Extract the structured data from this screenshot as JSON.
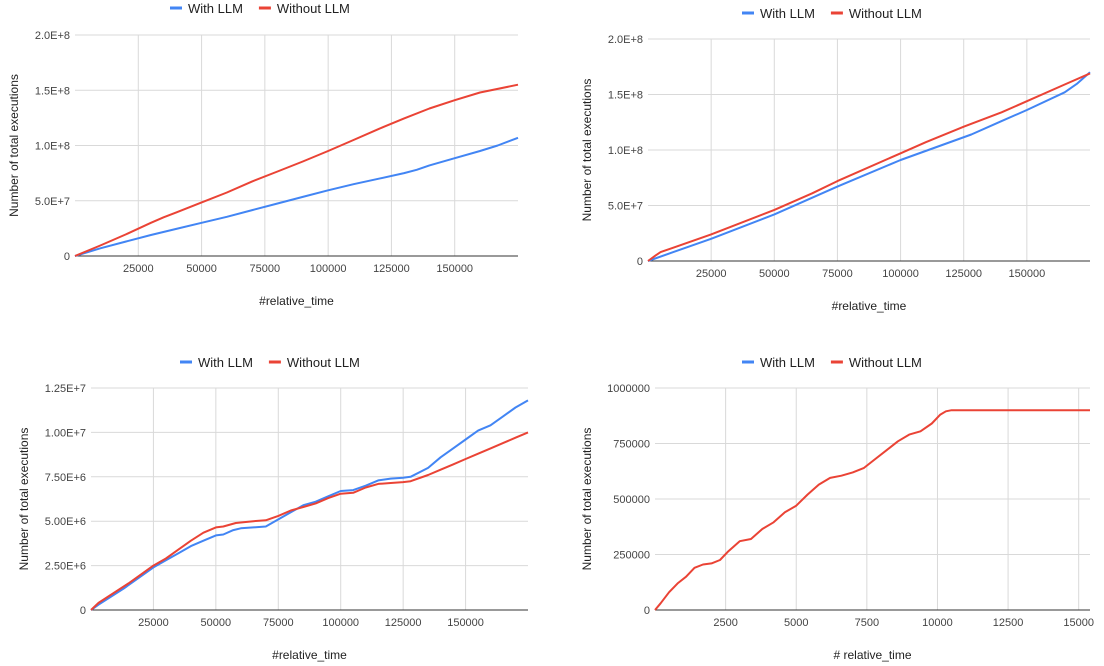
{
  "colors": {
    "with_llm": "#4285f4",
    "without_llm": "#ea4335",
    "grid": "#d9d9d9"
  },
  "chart_data": [
    {
      "type": "line",
      "legend": [
        "With LLM",
        "Without LLM"
      ],
      "xlabel": "#relative_time",
      "ylabel": "Number of total executions",
      "xlim": [
        0,
        175000
      ],
      "ylim": [
        0,
        200000000
      ],
      "xticks": [
        25000,
        50000,
        75000,
        100000,
        125000,
        150000
      ],
      "xtick_labels": [
        "25000",
        "50000",
        "75000",
        "100000",
        "125000",
        "150000"
      ],
      "yticks": [
        0,
        50000000,
        100000000,
        150000000,
        200000000
      ],
      "ytick_labels": [
        "0",
        "5.0E+7",
        "1.0E+8",
        "1.5E+8",
        "2.0E+8"
      ],
      "series": [
        {
          "name": "With LLM",
          "x": [
            0,
            10000,
            20000,
            30000,
            40000,
            50000,
            60000,
            70000,
            80000,
            90000,
            100000,
            110000,
            120000,
            130000,
            135000,
            140000,
            150000,
            160000,
            167000,
            175000
          ],
          "y": [
            0,
            7000000,
            13000000,
            19000000,
            24500000,
            30000000,
            35500000,
            41500000,
            47500000,
            53500000,
            59500000,
            65000000,
            70000000,
            75000000,
            78000000,
            82000000,
            88500000,
            95000000,
            100000000,
            107000000
          ]
        },
        {
          "name": "Without LLM",
          "x": [
            0,
            10000,
            20000,
            30000,
            35000,
            40000,
            50000,
            60000,
            70000,
            80000,
            90000,
            100000,
            110000,
            120000,
            130000,
            140000,
            150000,
            160000,
            175000
          ],
          "y": [
            0,
            9500000,
            19500000,
            30000000,
            35000000,
            39500000,
            48500000,
            57500000,
            67500000,
            76500000,
            85500000,
            95000000,
            105000000,
            115000000,
            124500000,
            133500000,
            141000000,
            148000000,
            155000000
          ]
        }
      ]
    },
    {
      "type": "line",
      "legend": [
        "With LLM",
        "Without LLM"
      ],
      "xlabel": "#relative_time",
      "ylabel": "Number of total executions",
      "xlim": [
        0,
        175000
      ],
      "ylim": [
        0,
        200000000
      ],
      "xticks": [
        25000,
        50000,
        75000,
        100000,
        125000,
        150000
      ],
      "xtick_labels": [
        "25000",
        "50000",
        "75000",
        "100000",
        "125000",
        "150000"
      ],
      "yticks": [
        0,
        50000000,
        100000000,
        150000000,
        200000000
      ],
      "ytick_labels": [
        "0",
        "5.0E+7",
        "1.0E+8",
        "1.5E+8",
        "2.0E+8"
      ],
      "series": [
        {
          "name": "With LLM",
          "x": [
            0,
            10000,
            25000,
            50000,
            75000,
            100000,
            128000,
            140000,
            150000,
            165000,
            170000,
            175000
          ],
          "y": [
            0,
            8000000,
            20000000,
            42000000,
            67000000,
            91000000,
            114000000,
            126000000,
            136000000,
            152000000,
            160000000,
            170000000
          ]
        },
        {
          "name": "Without LLM",
          "x": [
            0,
            3000,
            5000,
            10000,
            25000,
            50000,
            65000,
            75000,
            100000,
            110000,
            125000,
            140000,
            150000,
            165000,
            175000
          ],
          "y": [
            0,
            5000000,
            8000000,
            12000000,
            24000000,
            46000000,
            61000000,
            72000000,
            97000000,
            107000000,
            121000000,
            134000000,
            144000000,
            159000000,
            169000000
          ]
        }
      ]
    },
    {
      "type": "line",
      "legend": [
        "With LLM",
        "Without LLM"
      ],
      "xlabel": "#relative_time",
      "ylabel": "Number of total executions",
      "xlim": [
        0,
        175000
      ],
      "ylim": [
        0,
        12500000
      ],
      "xticks": [
        25000,
        50000,
        75000,
        100000,
        125000,
        150000
      ],
      "xtick_labels": [
        "25000",
        "50000",
        "75000",
        "100000",
        "125000",
        "150000"
      ],
      "yticks": [
        0,
        2500000,
        5000000,
        7500000,
        10000000,
        12500000
      ],
      "ytick_labels": [
        "0",
        "2.50E+6",
        "5.00E+6",
        "7.50E+6",
        "1.00E+7",
        "1.25E+7"
      ],
      "series": [
        {
          "name": "With LLM",
          "x": [
            0,
            3000,
            13000,
            20000,
            25000,
            30000,
            35000,
            40000,
            45000,
            50000,
            53000,
            57000,
            60000,
            65000,
            70000,
            75000,
            80000,
            85000,
            90000,
            95000,
            100000,
            105000,
            110000,
            115000,
            120000,
            125000,
            128000,
            135000,
            140000,
            145000,
            150000,
            155000,
            160000,
            165000,
            170000,
            175000
          ],
          "y": [
            0,
            300000,
            1200000,
            1900000,
            2400000,
            2800000,
            3200000,
            3600000,
            3900000,
            4200000,
            4250000,
            4500000,
            4600000,
            4650000,
            4700000,
            5100000,
            5500000,
            5900000,
            6100000,
            6400000,
            6700000,
            6750000,
            7000000,
            7300000,
            7400000,
            7450000,
            7500000,
            8000000,
            8600000,
            9100000,
            9600000,
            10100000,
            10400000,
            10900000,
            11400000,
            11800000
          ]
        },
        {
          "name": "Without LLM",
          "x": [
            0,
            3000,
            15000,
            25000,
            30000,
            35000,
            40000,
            45000,
            50000,
            53000,
            58000,
            65000,
            70000,
            75000,
            80000,
            85000,
            90000,
            95000,
            100000,
            105000,
            110000,
            115000,
            120000,
            125000,
            128000,
            135000,
            140000,
            145000,
            150000,
            155000,
            160000,
            165000,
            170000,
            175000
          ],
          "y": [
            0,
            400000,
            1500000,
            2500000,
            2900000,
            3400000,
            3900000,
            4350000,
            4650000,
            4700000,
            4900000,
            5000000,
            5050000,
            5300000,
            5600000,
            5800000,
            6000000,
            6300000,
            6550000,
            6600000,
            6900000,
            7100000,
            7150000,
            7200000,
            7250000,
            7600000,
            7900000,
            8200000,
            8500000,
            8800000,
            9100000,
            9400000,
            9700000,
            10000000
          ]
        }
      ]
    },
    {
      "type": "line",
      "legend": [
        "With LLM",
        "Without LLM"
      ],
      "xlabel": "# relative_time",
      "ylabel": "Number of total executions",
      "xlim": [
        0,
        15400
      ],
      "ylim": [
        0,
        1000000
      ],
      "xticks": [
        2500,
        5000,
        7500,
        10000,
        12500,
        15000
      ],
      "xtick_labels": [
        "2500",
        "5000",
        "7500",
        "10000",
        "12500",
        "15000"
      ],
      "yticks": [
        0,
        250000,
        500000,
        750000,
        1000000
      ],
      "ytick_labels": [
        "0",
        "250000",
        "500000",
        "750000",
        "1000000"
      ],
      "series": [
        {
          "name": "With LLM",
          "x": [],
          "y": []
        },
        {
          "name": "Without LLM",
          "x": [
            0,
            200,
            500,
            800,
            1100,
            1400,
            1700,
            2000,
            2300,
            2600,
            3000,
            3400,
            3800,
            4200,
            4600,
            5000,
            5400,
            5800,
            6200,
            6600,
            7000,
            7400,
            7800,
            8200,
            8600,
            9000,
            9400,
            9800,
            10100,
            10300,
            10500,
            11000,
            12000,
            13000,
            14000,
            15400
          ],
          "y": [
            0,
            30000,
            80000,
            120000,
            150000,
            190000,
            205000,
            210000,
            225000,
            265000,
            310000,
            320000,
            365000,
            395000,
            440000,
            470000,
            520000,
            565000,
            595000,
            605000,
            620000,
            640000,
            680000,
            720000,
            760000,
            790000,
            805000,
            840000,
            880000,
            895000,
            900000,
            900000,
            900000,
            900000,
            900000,
            900000
          ]
        }
      ]
    }
  ]
}
